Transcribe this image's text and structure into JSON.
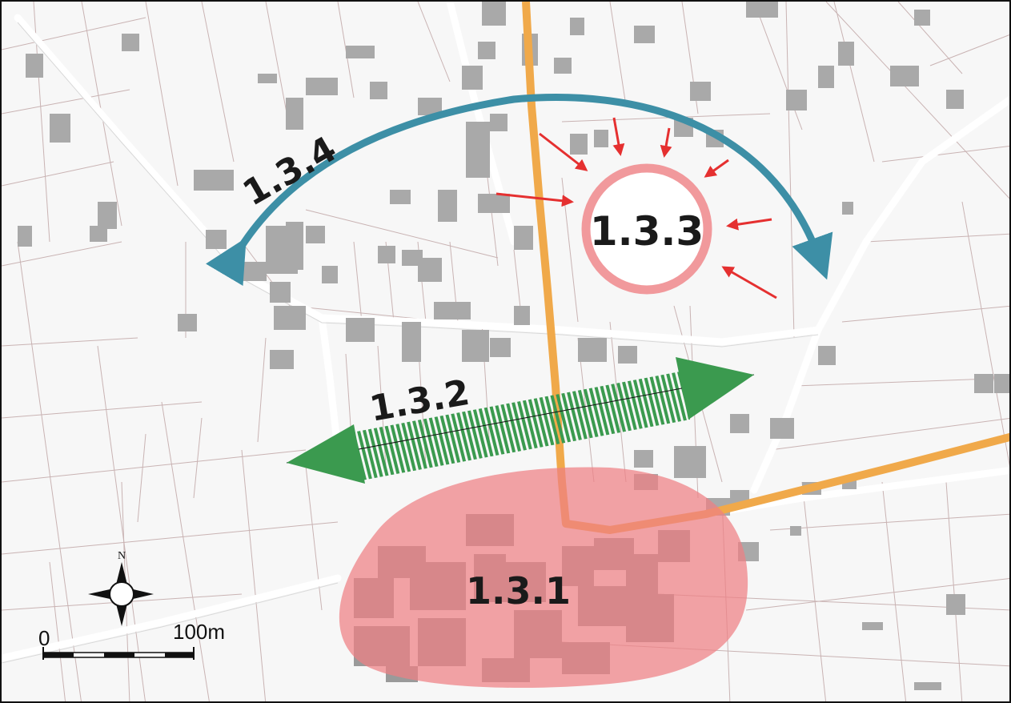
{
  "map": {
    "zones": {
      "z131": {
        "label": "1.3.1",
        "color": "#ef7f84"
      },
      "z132": {
        "label": "1.3.2",
        "color": "#3b9a4f"
      },
      "z133": {
        "label": "1.3.3",
        "color": "#f1999c"
      },
      "z134": {
        "label": "1.3.4",
        "color": "#3d8fa6"
      }
    },
    "road_color": "#f0a94a",
    "pressure_arrow_color": "#e53030",
    "north": {
      "label": "N"
    },
    "scale": {
      "start": "0",
      "end": "100m"
    }
  }
}
